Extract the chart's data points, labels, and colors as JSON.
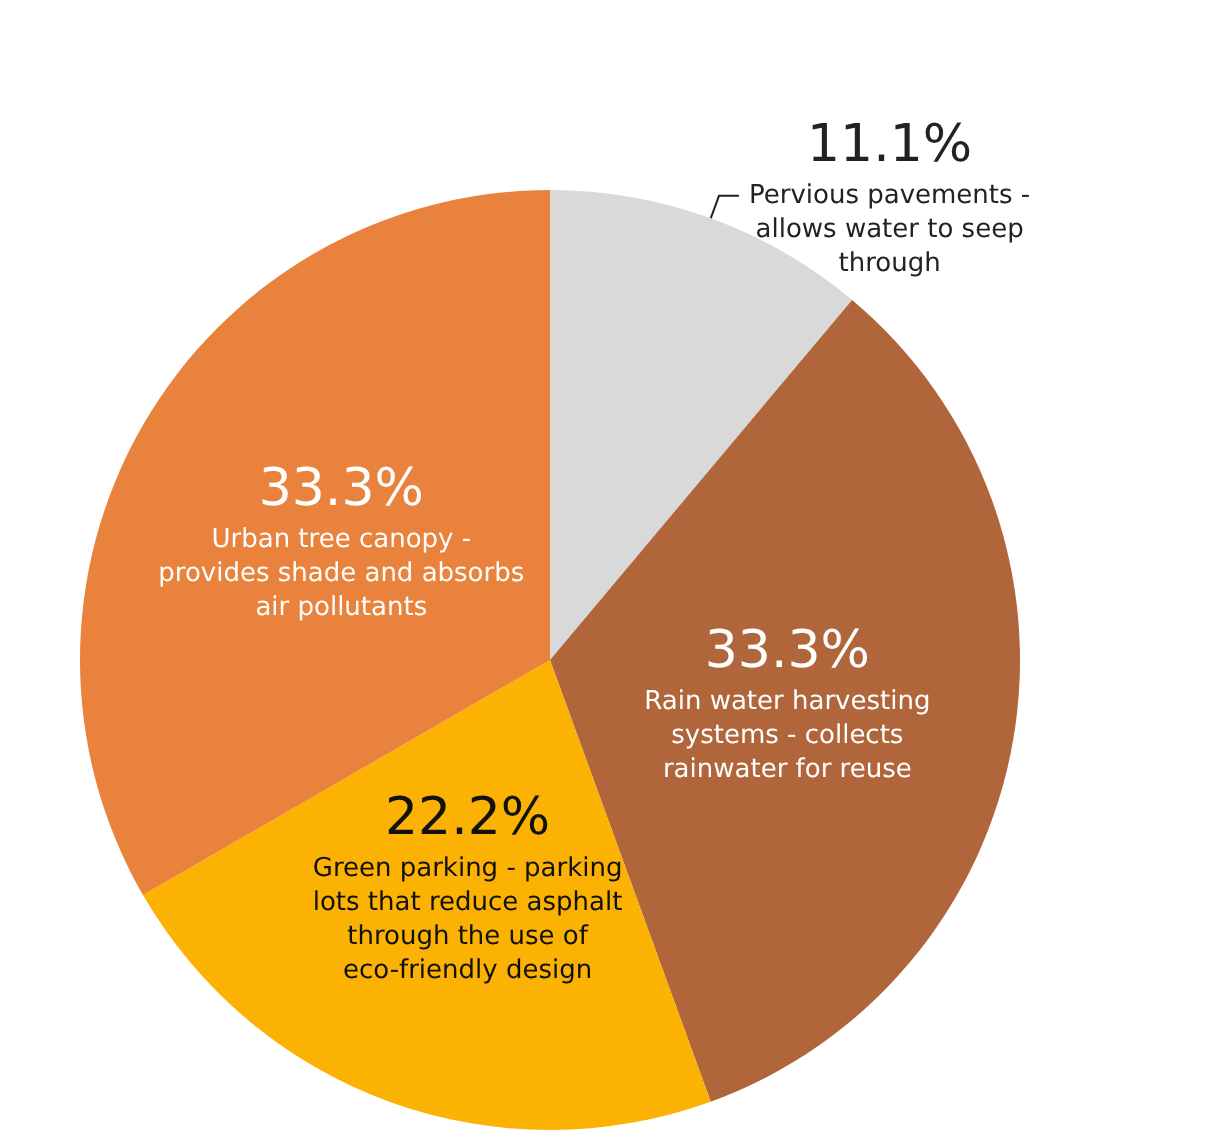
{
  "chart_data": {
    "type": "pie",
    "categories": [
      "Pervious pavements - allows water to seep through",
      "Rain water harvesting systems - collects rainwater for reuse",
      "Green parking - parking lots that reduce asphalt through the use of eco-friendly design",
      "Urban tree canopy - provides shade and absorbs air pollutants"
    ],
    "values": [
      11.1,
      33.3,
      22.2,
      33.3
    ],
    "value_labels": [
      "11.1%",
      "33.3%",
      "22.2%",
      "33.3%"
    ],
    "colors": [
      "#d9d9d9",
      "#b0653a",
      "#fbb203",
      "#e9823c"
    ],
    "legend": false
  }
}
